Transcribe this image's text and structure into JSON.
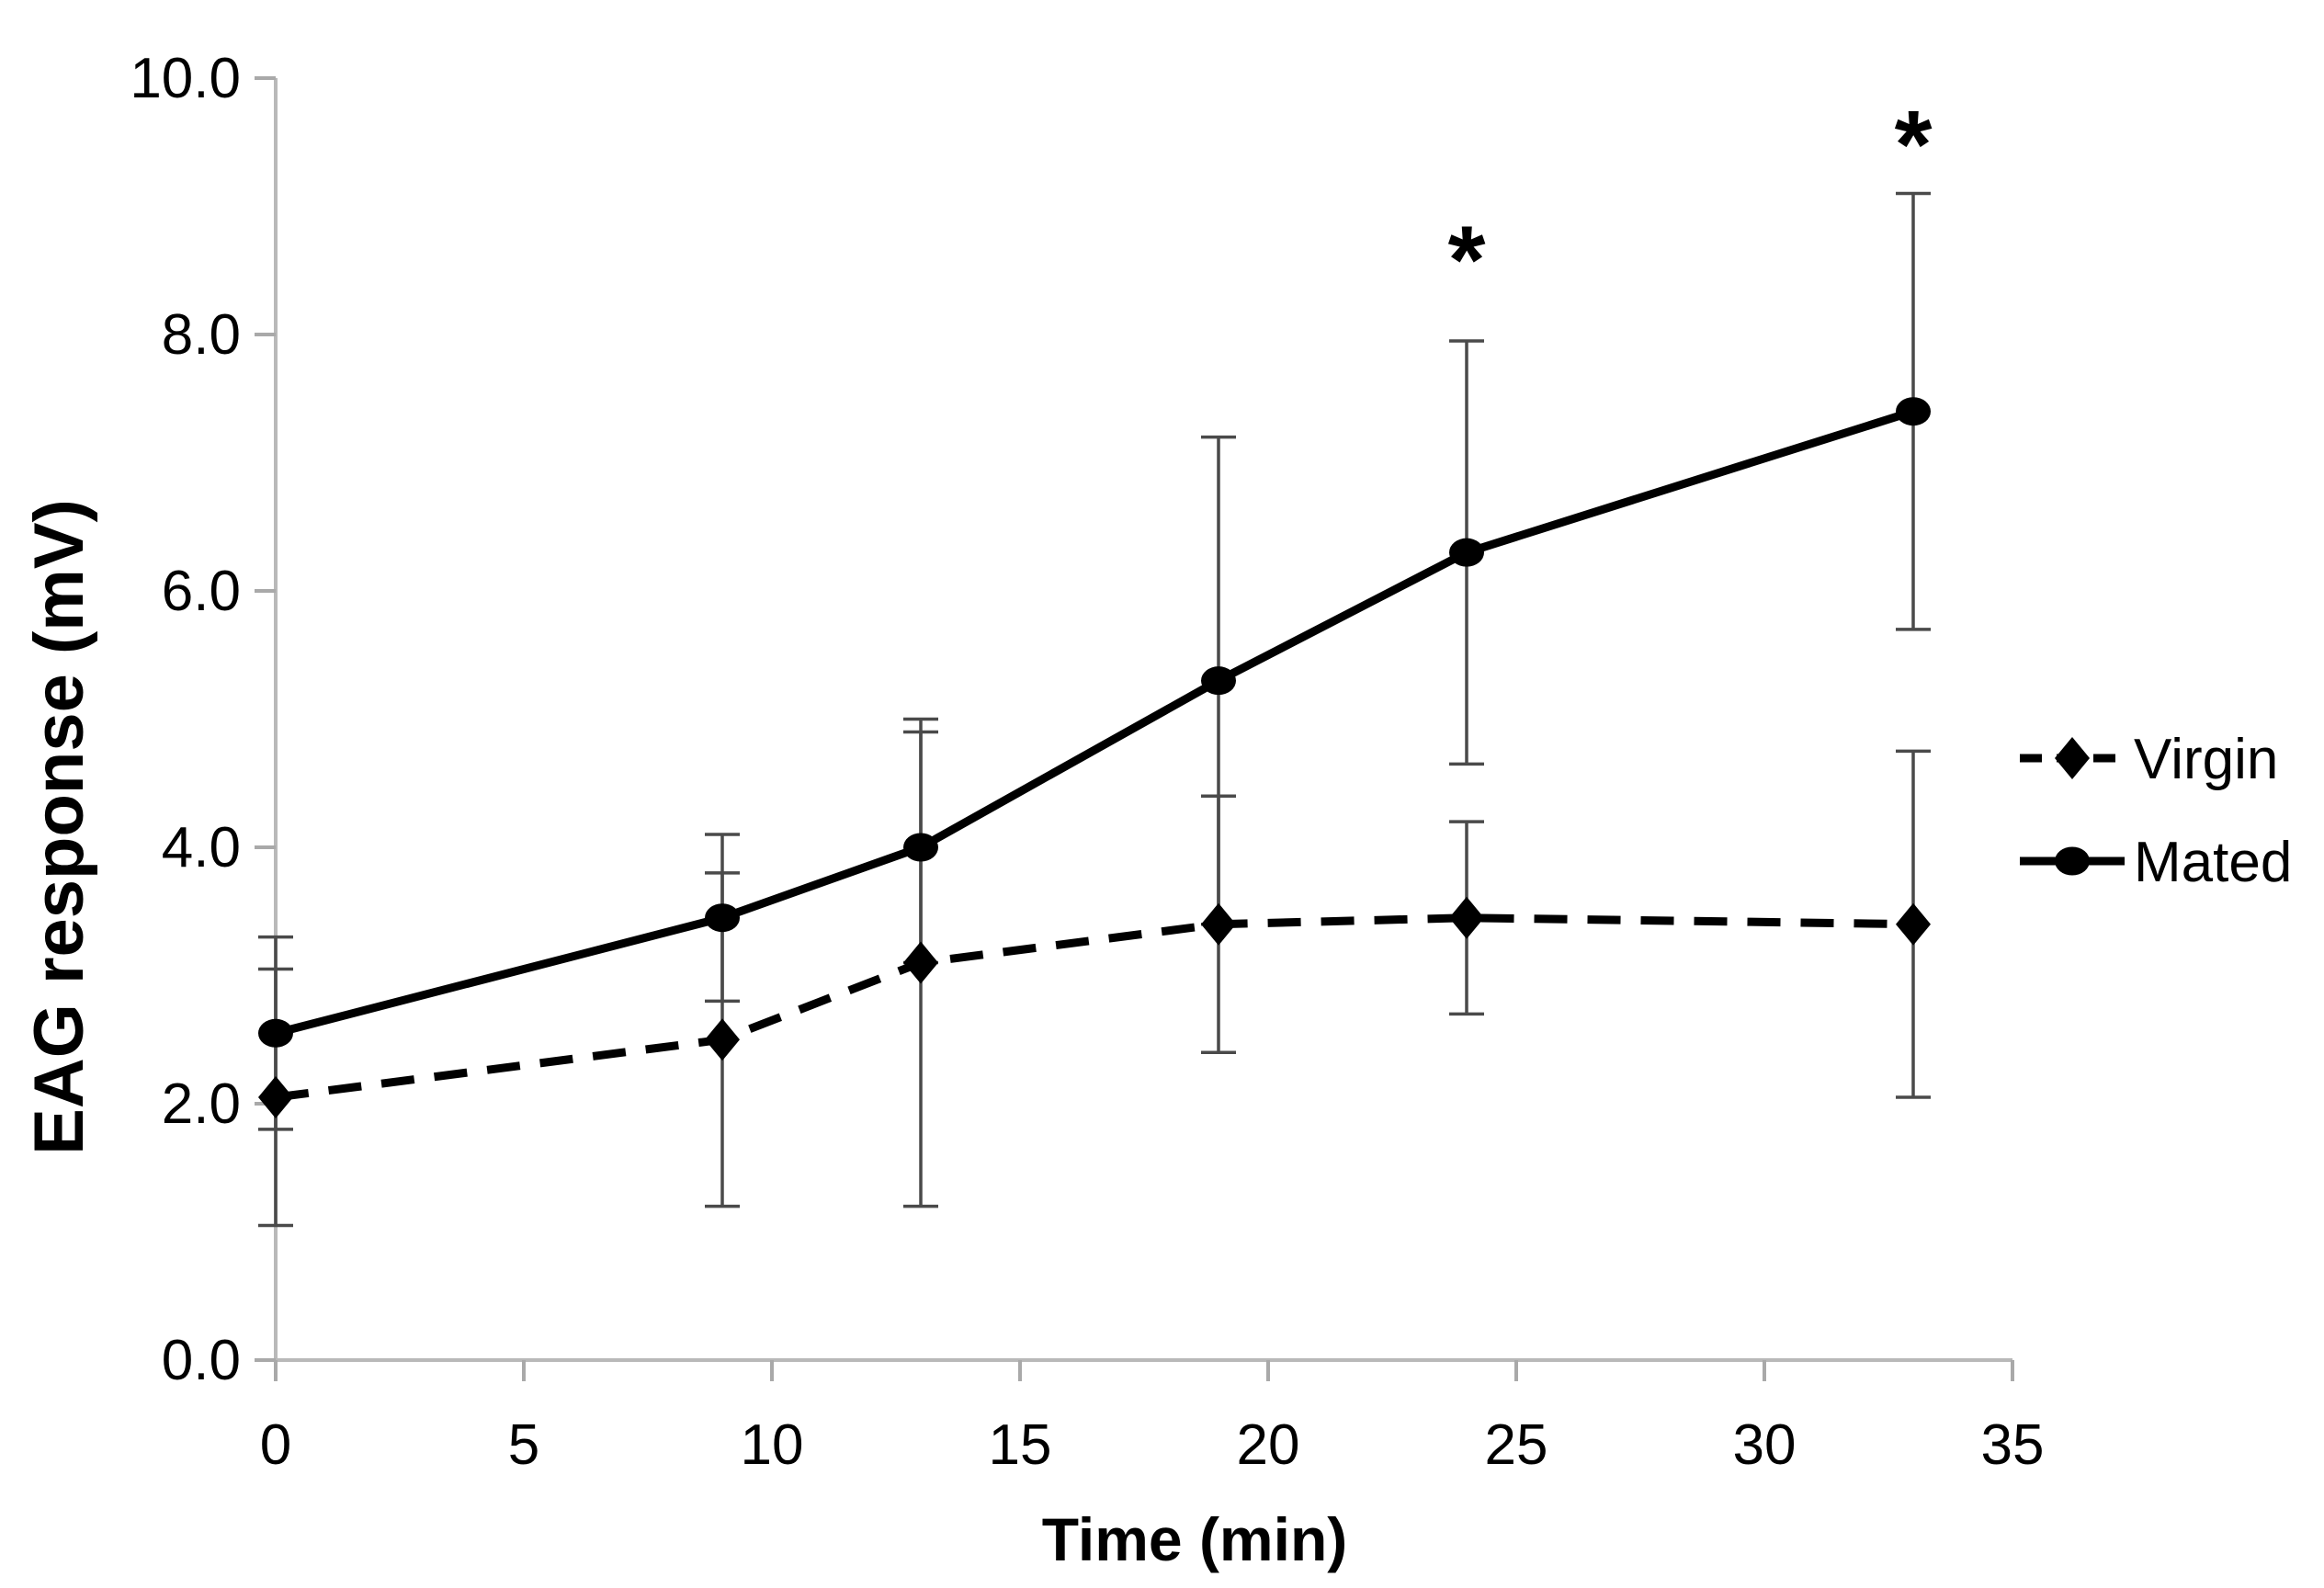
{
  "chart_data": {
    "type": "line",
    "title": "",
    "xlabel": "Time (min)",
    "ylabel": "EAG response (mV)",
    "x": [
      0,
      9,
      13,
      19,
      24,
      33
    ],
    "series": [
      {
        "name": "Virgin",
        "marker": "diamond",
        "line_style": "dashed",
        "values": [
          2.05,
          2.5,
          3.1,
          3.4,
          3.45,
          3.4
        ],
        "errors": [
          1.0,
          1.3,
          1.9,
          1.0,
          0.75,
          1.35
        ]
      },
      {
        "name": "Mated",
        "marker": "circle",
        "line_style": "solid",
        "values": [
          2.55,
          3.45,
          4.0,
          5.3,
          6.3,
          7.4
        ],
        "errors": [
          0.75,
          0.65,
          0.9,
          1.9,
          1.65,
          1.7
        ]
      }
    ],
    "xlim": [
      0,
      35
    ],
    "ylim": [
      0.0,
      10.0
    ],
    "xticks": [
      0,
      5,
      10,
      15,
      20,
      25,
      30,
      35
    ],
    "ytick_labels": [
      "0.0",
      "2.0",
      "4.0",
      "6.0",
      "8.0",
      "10.0"
    ],
    "grid": false,
    "legend_position": "right-middle",
    "annotations": [
      {
        "text": "*",
        "x": 24,
        "y": 8.7
      },
      {
        "text": "*",
        "x": 33,
        "y": 9.6
      }
    ]
  },
  "style": {
    "background": "#ffffff",
    "text_color": "#000000",
    "series_color": "#000000",
    "error_bar_color": "#4a4a4a",
    "axis_line_color": "#b9b9b9",
    "tick_mark_color": "#a9a9a9"
  }
}
